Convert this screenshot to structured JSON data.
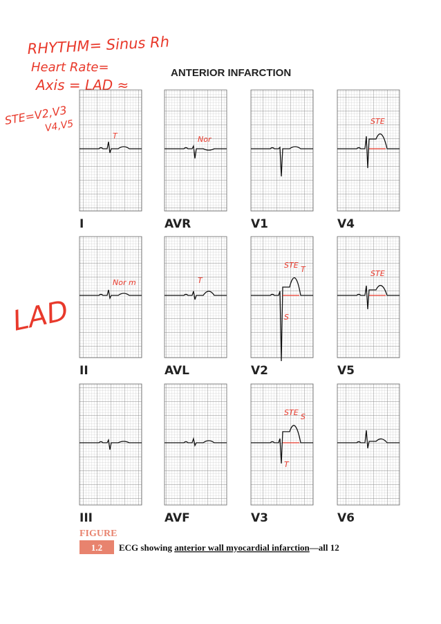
{
  "annotations": [
    "RHYTHM= Sinus Rh",
    "Heart Rate=",
    "Axis = LAD ≈",
    "STE=V2,V3",
    "V4,V5",
    "LAD"
  ],
  "title": "ANTERIOR INFARCTION",
  "leads": [
    {
      "label": "I",
      "notes": [
        "T"
      ]
    },
    {
      "label": "AVR",
      "notes": [
        "Nor"
      ]
    },
    {
      "label": "V1",
      "notes": []
    },
    {
      "label": "V4",
      "notes": [
        "STE"
      ]
    },
    {
      "label": "II",
      "notes": [
        "Nor m"
      ]
    },
    {
      "label": "AVL",
      "notes": [
        "T"
      ]
    },
    {
      "label": "V2",
      "notes": [
        "STE",
        "T",
        "S"
      ]
    },
    {
      "label": "V5",
      "notes": [
        "STE"
      ]
    },
    {
      "label": "III",
      "notes": []
    },
    {
      "label": "AVF",
      "notes": []
    },
    {
      "label": "V3",
      "notes": [
        "STE",
        "S",
        "T"
      ]
    },
    {
      "label": "V6",
      "notes": []
    }
  ],
  "caption": {
    "figure": "FIGURE",
    "number": "1.2",
    "prefix": "ECG showing ",
    "link": "anterior wall myocardial infarction",
    "suffix": "—all 12"
  }
}
